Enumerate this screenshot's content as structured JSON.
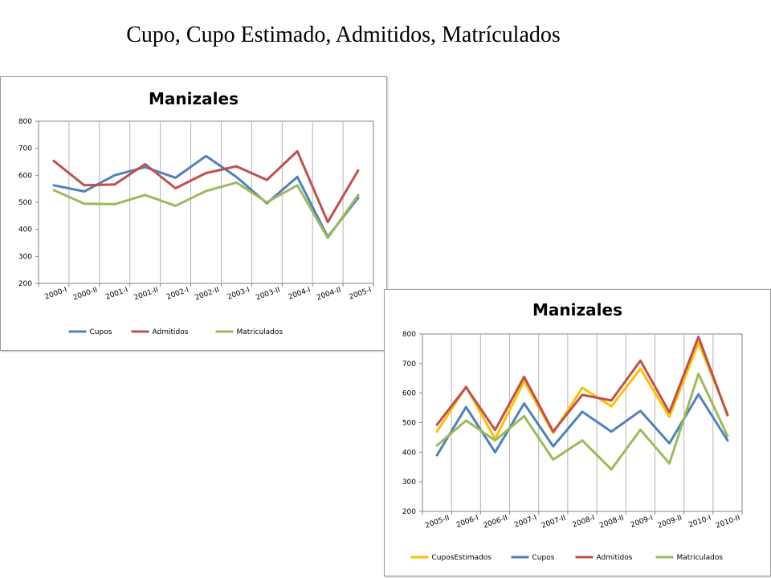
{
  "slide": {
    "title": "Cupo, Cupo Estimado,  Admitidos, Matrículados"
  },
  "colors": {
    "Cupos": "#4f81bd",
    "Admitidos": "#c0504d",
    "Matriculados": "#9bbb59",
    "CuposEstimados": "#ffc000",
    "gridline": "#b3b3b3",
    "axis": "#868686"
  },
  "chart_data": [
    {
      "type": "line",
      "title": "Manizales",
      "xlabel": "",
      "ylabel": "",
      "ylim": [
        200,
        800
      ],
      "yticks": [
        200,
        300,
        400,
        500,
        600,
        700,
        800
      ],
      "grid": {
        "vertical": true,
        "horizontal": false
      },
      "legend": "bottom",
      "categories": [
        "2000-I",
        "2000-II",
        "2001-I",
        "2001-II",
        "2002-I",
        "2002-II",
        "2003-I",
        "2003-II",
        "2004-I",
        "2004-II",
        "2005-I"
      ],
      "series": [
        {
          "name": "Cupos",
          "values": [
            563,
            540,
            600,
            630,
            591,
            671,
            594,
            496,
            594,
            372,
            517
          ]
        },
        {
          "name": "Admitidos",
          "values": [
            653,
            563,
            566,
            641,
            552,
            608,
            633,
            583,
            689,
            427,
            618
          ]
        },
        {
          "name": "Matriculados",
          "values": [
            545,
            495,
            493,
            527,
            487,
            542,
            573,
            500,
            563,
            368,
            527
          ]
        }
      ]
    },
    {
      "type": "line",
      "title": "Manizales",
      "xlabel": "",
      "ylabel": "",
      "ylim": [
        200,
        800
      ],
      "yticks": [
        200,
        300,
        400,
        500,
        600,
        700,
        800
      ],
      "grid": {
        "vertical": true,
        "horizontal": false
      },
      "legend": "bottom",
      "categories": [
        "2005-II",
        "2006-I",
        "2006-II",
        "2007-I",
        "2007-II",
        "2008-I",
        "2008-II",
        "2009-I",
        "2009-II",
        "2010-I",
        "2010-II"
      ],
      "series": [
        {
          "name": "CuposEstimados",
          "values": [
            470,
            622,
            445,
            640,
            465,
            618,
            555,
            682,
            520,
            770,
            530
          ]
        },
        {
          "name": "Cupos",
          "values": [
            390,
            553,
            400,
            565,
            420,
            537,
            470,
            540,
            430,
            596,
            440
          ]
        },
        {
          "name": "Admitidos",
          "values": [
            493,
            620,
            475,
            655,
            470,
            594,
            575,
            710,
            535,
            790,
            525
          ]
        },
        {
          "name": "Matriculados",
          "values": [
            423,
            507,
            440,
            522,
            375,
            440,
            342,
            476,
            362,
            665,
            455
          ]
        }
      ]
    }
  ]
}
